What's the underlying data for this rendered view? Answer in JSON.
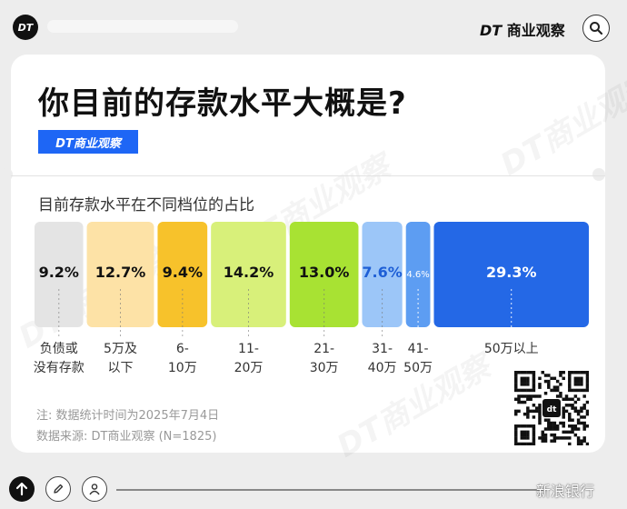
{
  "header": {
    "logo_text": "DT",
    "brand_dt": "DT",
    "brand_name": "商业观察"
  },
  "card": {
    "title": "你目前的存款水平大概是?",
    "badge": "DT商业观察",
    "subtitle": "目前存款水平在不同档位的占比"
  },
  "chart_data": {
    "type": "bar",
    "subtype": "marimekko-percent-bars",
    "title": "你目前的存款水平大概是?",
    "subtitle": "目前存款水平在不同档位的占比",
    "categories": [
      "负债或没有存款",
      "5万及以下",
      "6-10万",
      "11-20万",
      "21-30万",
      "31-40万",
      "41-50万",
      "50万以上"
    ],
    "category_lines": [
      [
        "负债或",
        "没有存款"
      ],
      [
        "5万及",
        "以下"
      ],
      [
        "6-",
        "10万"
      ],
      [
        "11-",
        "20万"
      ],
      [
        "21-",
        "30万"
      ],
      [
        "31-",
        "40万"
      ],
      [
        "41-",
        "50万"
      ],
      [
        "50万以上"
      ]
    ],
    "values": [
      9.2,
      12.7,
      9.4,
      14.2,
      13.0,
      7.6,
      4.6,
      29.3
    ],
    "value_labels": [
      "9.2%",
      "12.7%",
      "9.4%",
      "14.2%",
      "13.0%",
      "7.6%",
      "4.6%",
      "29.3%"
    ],
    "colors": [
      "#e4e4e4",
      "#fde2a6",
      "#f7c22b",
      "#d8f07a",
      "#a8e233",
      "#9cc6f8",
      "#5d9df2",
      "#2468e6"
    ],
    "label_colors": [
      "#111111",
      "#111111",
      "#111111",
      "#111111",
      "#111111",
      "#1e5fd6",
      "#ffffff",
      "#ffffff"
    ],
    "unit": "%"
  },
  "notes": {
    "note_line": "注: 数据统计时间为2025年7月4日",
    "source_line": "数据来源: DT商业观察 (N=1825)"
  },
  "qr_center": "dt",
  "watermark_text": "DT商业观察",
  "footer": {
    "platform": "新浪银行"
  },
  "icons": [
    "up-arrow-icon",
    "pencil-icon",
    "user-icon",
    "search-icon"
  ]
}
